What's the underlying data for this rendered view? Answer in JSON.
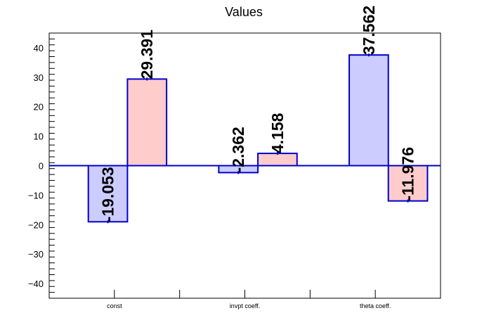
{
  "chart_data": {
    "type": "bar",
    "title": "Values",
    "categories": [
      "const",
      "invpt coeff.",
      "theta coeff."
    ],
    "series": [
      {
        "values": [
          -19.053,
          -2.362,
          37.562
        ],
        "color": "#ccccff"
      },
      {
        "values": [
          29.391,
          4.158,
          -11.976
        ],
        "color": "#ffcccc"
      }
    ],
    "data_labels": [
      [
        "-19.053",
        "-2.362",
        "37.562"
      ],
      [
        "29.391",
        "4.158",
        "-11.976"
      ]
    ],
    "ylim": [
      -45,
      45
    ],
    "y_ticks": [
      -40,
      -30,
      -20,
      -10,
      0,
      10,
      20,
      30,
      40
    ],
    "xlabel": "",
    "ylabel": "",
    "grid": false,
    "frame_color": "#000000",
    "bar_outline_color": "#0000cc"
  }
}
